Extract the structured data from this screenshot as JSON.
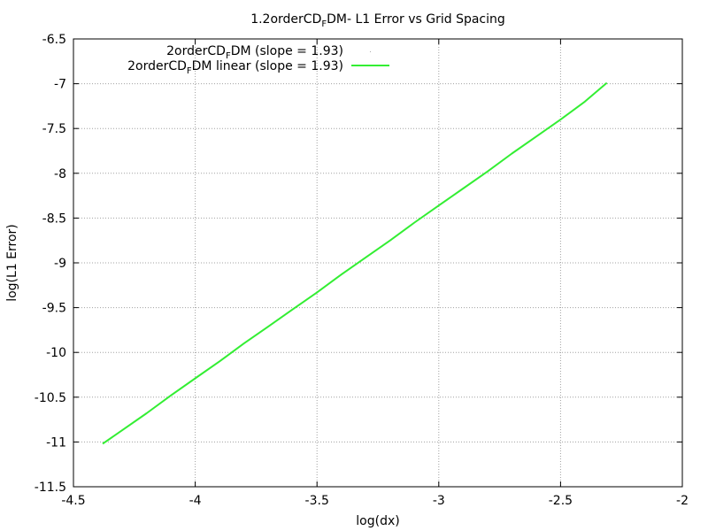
{
  "chart_data": {
    "type": "line",
    "title": {
      "pre": "1.2orderCD",
      "sub": "F",
      "post": "DM- L1 Error vs Grid Spacing"
    },
    "xlabel": "log(dx)",
    "ylabel": "log(L1 Error)",
    "xlim": [
      -4.5,
      -2
    ],
    "ylim": [
      -11.5,
      -6.5
    ],
    "xticks": [
      -4.5,
      -4,
      -3.5,
      -3,
      -2.5,
      -2
    ],
    "xtick_labels": [
      "-4.5",
      "-4",
      "-3.5",
      "-3",
      "-2.5",
      "-2"
    ],
    "yticks": [
      -11.5,
      -11,
      -10.5,
      -10,
      -9.5,
      -9,
      -8.5,
      -8,
      -7.5,
      -7,
      -6.5
    ],
    "ytick_labels": [
      "-11.5",
      "-11",
      "-10.5",
      "-10",
      "-9.5",
      "-9",
      "-8.5",
      "-8",
      "-7.5",
      "-7",
      "-6.5"
    ],
    "grid": true,
    "legend_position": "top-left",
    "series": [
      {
        "name": {
          "pre": "2orderCD",
          "sub": "F",
          "post": "DM (slope = 1.93)"
        },
        "style": "points",
        "color": "#aaaaaa",
        "x": [],
        "y": []
      },
      {
        "name": {
          "pre": "2orderCD",
          "sub": "F",
          "post": "DM linear (slope = 1.93)"
        },
        "style": "line",
        "color": "#33ee33",
        "x": [
          -4.38,
          -4.3,
          -4.2,
          -4.1,
          -4.0,
          -3.9,
          -3.8,
          -3.7,
          -3.6,
          -3.5,
          -3.4,
          -3.3,
          -3.2,
          -3.1,
          -3.0,
          -2.9,
          -2.8,
          -2.7,
          -2.6,
          -2.5,
          -2.4,
          -2.31
        ],
        "y": [
          -11.02,
          -10.87,
          -10.68,
          -10.48,
          -10.29,
          -10.1,
          -9.9,
          -9.71,
          -9.52,
          -9.33,
          -9.13,
          -8.94,
          -8.75,
          -8.55,
          -8.36,
          -8.17,
          -7.98,
          -7.78,
          -7.59,
          -7.4,
          -7.2,
          -6.99
        ]
      }
    ]
  }
}
